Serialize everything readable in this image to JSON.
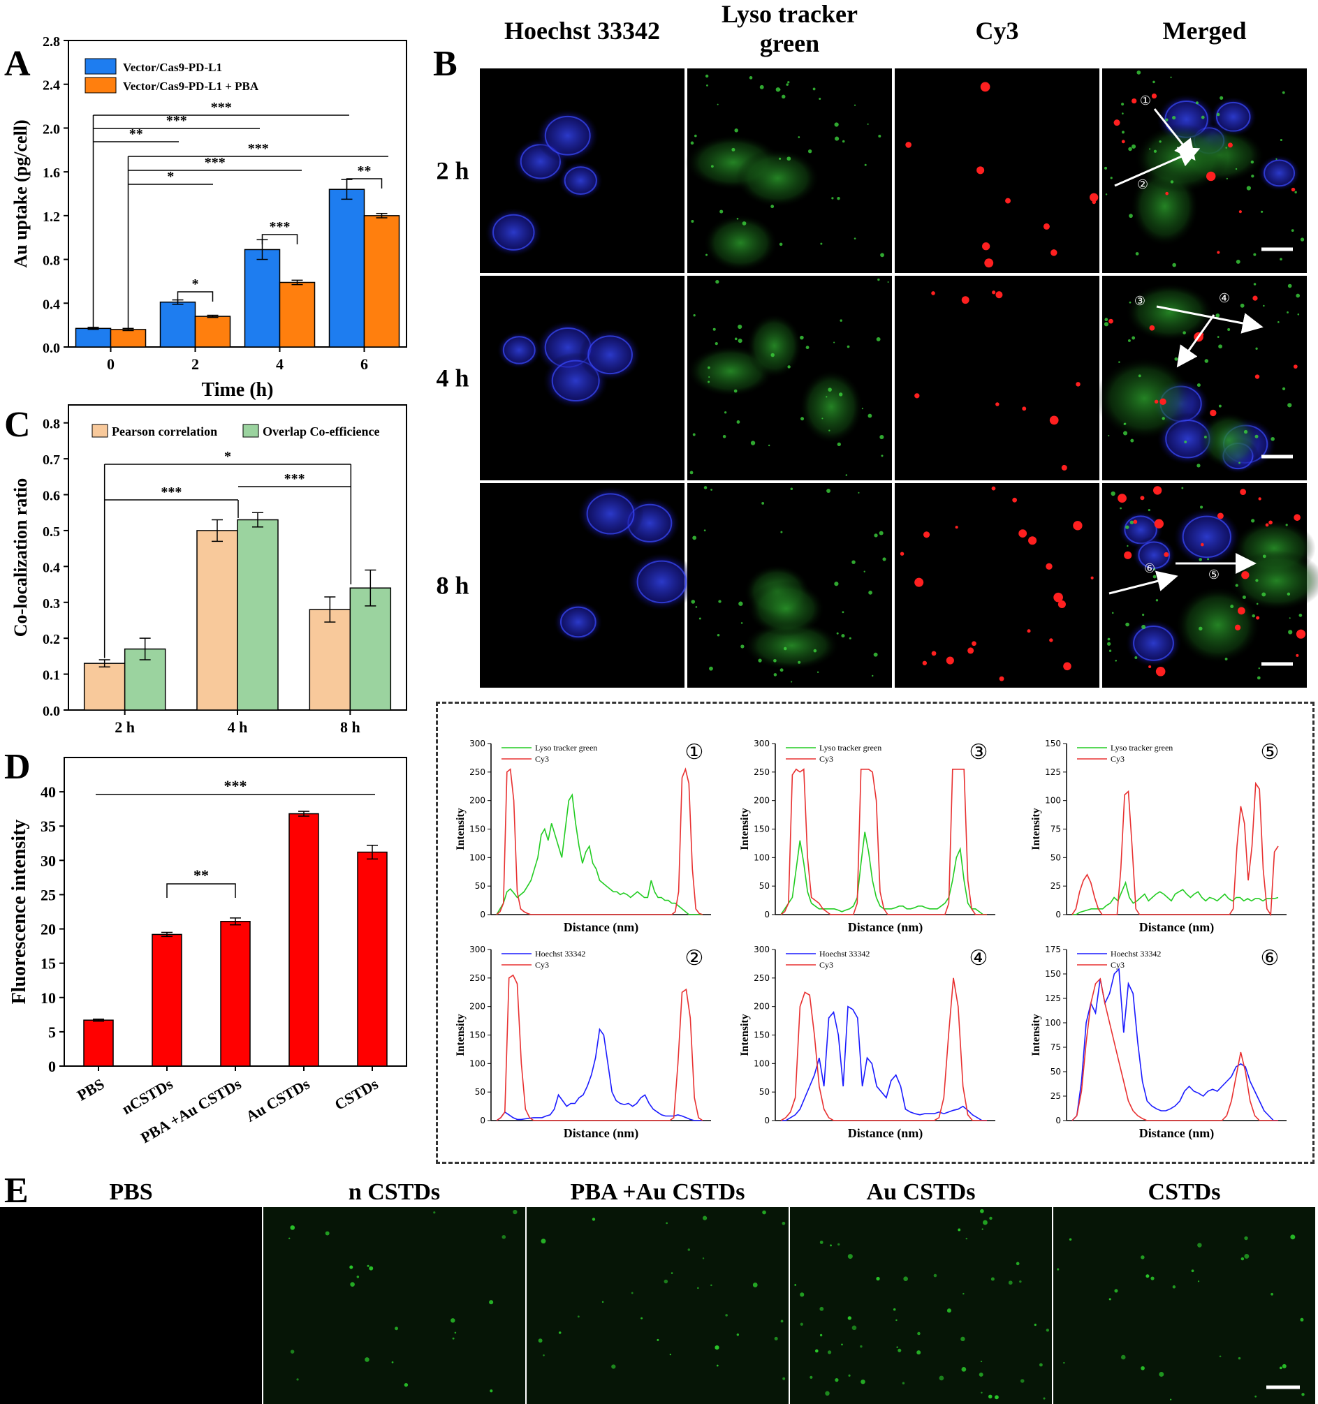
{
  "panel_letters": {
    "A": "A",
    "B": "B",
    "C": "C",
    "D": "D",
    "E": "E"
  },
  "colors": {
    "blue": "#1e7df0",
    "orange": "#ff7f0e",
    "peach": "#f8c99b",
    "mint": "#9bd39f",
    "red": "#ff0000",
    "lyso": "#22cc22",
    "hoechst": "#1a1aff",
    "cy3": "#e83030"
  },
  "panel_B": {
    "columns": [
      "Hoechst 33342",
      "Lyso tracker green",
      "Cy3",
      "Merged"
    ],
    "column_lines": [
      [
        "Hoechst 33342"
      ],
      [
        "Lyso tracker",
        "green"
      ],
      [
        "Cy3"
      ],
      [
        "Merged"
      ]
    ],
    "rows": [
      "2 h",
      "4 h",
      "8 h"
    ],
    "roi_markers": [
      "①",
      "②",
      "③",
      "④",
      "⑤",
      "⑥"
    ]
  },
  "panel_E": {
    "labels": [
      "PBS",
      "n CSTDs",
      "PBA +Au CSTDs",
      "Au CSTDs",
      "CSTDs"
    ]
  },
  "chart_data": [
    {
      "id": "A",
      "type": "bar",
      "xlabel": "Time (h)",
      "ylabel": "Au uptake (pg/cell)",
      "categories": [
        "0",
        "2",
        "4",
        "6"
      ],
      "ylim": [
        0,
        2.8
      ],
      "yticks": [
        "0.0",
        "0.4",
        "0.8",
        "1.2",
        "1.6",
        "2.0",
        "2.4",
        "2.8"
      ],
      "legend_position": "top-left",
      "series": [
        {
          "name": "Vector/Cas9-PD-L1",
          "values": [
            0.17,
            0.41,
            0.89,
            1.44
          ],
          "errors": [
            0.01,
            0.02,
            0.09,
            0.09
          ]
        },
        {
          "name": "Vector/Cas9-PD-L1 + PBA",
          "values": [
            0.16,
            0.28,
            0.59,
            1.2
          ],
          "errors": [
            0.01,
            0.01,
            0.02,
            0.02
          ]
        }
      ],
      "significance": [
        "***",
        "***",
        "**",
        "***",
        "***",
        "*",
        "*",
        "***",
        "**"
      ]
    },
    {
      "id": "C",
      "type": "bar",
      "xlabel": "",
      "ylabel": "Co-localization ratio",
      "categories": [
        "2 h",
        "4 h",
        "8 h"
      ],
      "ylim": [
        0,
        0.85
      ],
      "yticks": [
        "0.0",
        "0.1",
        "0.2",
        "0.3",
        "0.4",
        "0.5",
        "0.6",
        "0.7",
        "0.8"
      ],
      "legend_position": "top",
      "series": [
        {
          "name": "Pearson correlation",
          "values": [
            0.13,
            0.5,
            0.28
          ],
          "errors": [
            0.01,
            0.03,
            0.035
          ]
        },
        {
          "name": "Overlap Co-efficience",
          "values": [
            0.17,
            0.53,
            0.34
          ],
          "errors": [
            0.03,
            0.02,
            0.05
          ]
        }
      ],
      "significance": [
        "*",
        "***",
        "***"
      ]
    },
    {
      "id": "D",
      "type": "bar",
      "xlabel": "",
      "ylabel": "Fluorescence intensity",
      "categories": [
        "PBS",
        "nCSTDs",
        "PBA +Au CSTDs",
        "Au CSTDs",
        "CSTDs"
      ],
      "ylim": [
        0,
        45
      ],
      "yticks": [
        "0",
        "5",
        "10",
        "15",
        "20",
        "25",
        "30",
        "35",
        "40"
      ],
      "series": [
        {
          "values": [
            6.7,
            19.2,
            21.1,
            36.8,
            31.2
          ],
          "errors": [
            0.15,
            0.3,
            0.5,
            0.35,
            1.0
          ]
        }
      ],
      "significance": [
        "***",
        "**"
      ]
    },
    {
      "id": "profiles",
      "type": "line",
      "xlabel": "Distance (nm)",
      "ylabel": "Intensity",
      "panels": [
        {
          "marker": "①",
          "ylim": [
            0,
            300
          ],
          "yticks": [
            "0",
            "50",
            "100",
            "150",
            "200",
            "250",
            "300"
          ],
          "series": [
            {
              "name": "Lyso tracker green",
              "color": "green",
              "values": [
                0,
                10,
                20,
                40,
                45,
                38,
                30,
                35,
                40,
                50,
                60,
                80,
                100,
                140,
                150,
                130,
                160,
                140,
                120,
                100,
                150,
                200,
                210,
                160,
                120,
                90,
                110,
                120,
                90,
                80,
                60,
                55,
                50,
                45,
                40,
                40,
                35,
                38,
                35,
                30,
                35,
                40,
                35,
                30,
                30,
                60,
                40,
                30,
                30,
                25,
                25,
                20,
                20,
                15,
                10,
                5,
                0,
                0,
                0,
                0,
                0
              ]
            },
            {
              "name": "Cy3",
              "color": "red",
              "values": [
                0,
                5,
                20,
                250,
                255,
                200,
                40,
                10,
                5,
                2,
                0,
                0,
                0,
                0,
                0,
                0,
                0,
                0,
                0,
                0,
                0,
                0,
                0,
                0,
                0,
                0,
                0,
                0,
                0,
                0,
                0,
                0,
                0,
                0,
                0,
                0,
                0,
                0,
                0,
                0,
                0,
                0,
                0,
                0,
                0,
                0,
                0,
                0,
                0,
                0,
                0,
                0,
                5,
                40,
                240,
                255,
                230,
                80,
                10,
                2,
                0
              ]
            }
          ]
        },
        {
          "marker": "③",
          "ylim": [
            0,
            300
          ],
          "yticks": [
            "0",
            "50",
            "100",
            "150",
            "200",
            "250",
            "300"
          ],
          "series": [
            {
              "name": "Lyso tracker green",
              "color": "green",
              "values": [
                0,
                10,
                20,
                30,
                80,
                130,
                90,
                40,
                20,
                15,
                10,
                10,
                10,
                10,
                10,
                8,
                5,
                8,
                10,
                15,
                30,
                90,
                145,
                110,
                60,
                30,
                15,
                10,
                10,
                10,
                12,
                15,
                15,
                10,
                10,
                12,
                15,
                15,
                12,
                10,
                10,
                10,
                15,
                20,
                30,
                60,
                100,
                115,
                60,
                20,
                10,
                10,
                5,
                0,
                0
              ]
            },
            {
              "name": "Cy3",
              "color": "red",
              "values": [
                0,
                5,
                20,
                245,
                255,
                250,
                255,
                100,
                30,
                25,
                20,
                10,
                5,
                0,
                0,
                0,
                0,
                0,
                0,
                0,
                20,
                255,
                255,
                255,
                250,
                200,
                40,
                10,
                0,
                0,
                0,
                0,
                0,
                0,
                0,
                0,
                0,
                0,
                0,
                0,
                0,
                0,
                0,
                0,
                20,
                255,
                255,
                255,
                255,
                60,
                10,
                0,
                0,
                0,
                0
              ]
            }
          ]
        },
        {
          "marker": "⑤",
          "ylim": [
            0,
            150
          ],
          "yticks": [
            "0",
            "25",
            "50",
            "75",
            "100",
            "125",
            "150"
          ],
          "series": [
            {
              "name": "Lyso tracker green",
              "color": "green",
              "values": [
                0,
                0,
                2,
                3,
                4,
                5,
                5,
                5,
                5,
                8,
                10,
                15,
                12,
                20,
                28,
                15,
                10,
                12,
                15,
                18,
                12,
                15,
                18,
                20,
                18,
                15,
                12,
                18,
                20,
                22,
                18,
                15,
                18,
                20,
                15,
                12,
                15,
                14,
                12,
                15,
                18,
                14,
                12,
                15,
                15,
                12,
                14,
                12,
                14,
                14,
                12,
                14,
                14,
                14,
                15
              ]
            },
            {
              "name": "Cy3",
              "color": "red",
              "values": [
                0,
                5,
                20,
                30,
                35,
                28,
                15,
                5,
                0,
                0,
                0,
                0,
                0,
                40,
                105,
                108,
                60,
                5,
                0,
                0,
                0,
                0,
                0,
                0,
                0,
                0,
                0,
                0,
                0,
                0,
                0,
                0,
                0,
                0,
                0,
                0,
                0,
                0,
                0,
                0,
                0,
                0,
                0,
                5,
                60,
                95,
                80,
                30,
                60,
                115,
                110,
                40,
                5,
                0,
                55,
                60
              ]
            }
          ]
        },
        {
          "marker": "②",
          "ylim": [
            0,
            300
          ],
          "yticks": [
            "0",
            "50",
            "100",
            "150",
            "200",
            "250",
            "300"
          ],
          "series": [
            {
              "name": "Hoechst 33342",
              "color": "blue",
              "values": [
                0,
                5,
                15,
                10,
                5,
                2,
                2,
                3,
                4,
                5,
                5,
                5,
                8,
                10,
                20,
                45,
                35,
                25,
                30,
                30,
                40,
                45,
                60,
                80,
                110,
                160,
                150,
                100,
                50,
                35,
                30,
                28,
                30,
                25,
                30,
                40,
                45,
                30,
                20,
                15,
                10,
                8,
                8,
                8,
                10,
                8,
                5,
                2,
                0,
                0,
                0
              ]
            },
            {
              "name": "Cy3",
              "color": "red",
              "values": [
                0,
                5,
                15,
                250,
                255,
                240,
                100,
                20,
                5,
                0,
                0,
                0,
                0,
                0,
                0,
                0,
                0,
                0,
                0,
                0,
                0,
                0,
                0,
                0,
                0,
                0,
                0,
                0,
                0,
                0,
                0,
                0,
                0,
                0,
                0,
                0,
                0,
                0,
                0,
                0,
                0,
                0,
                0,
                5,
                100,
                225,
                230,
                180,
                40,
                5,
                0
              ]
            }
          ]
        },
        {
          "marker": "④",
          "ylim": [
            0,
            300
          ],
          "yticks": [
            "0",
            "50",
            "100",
            "150",
            "200",
            "250",
            "300"
          ],
          "series": [
            {
              "name": "Hoechst 33342",
              "color": "blue",
              "values": [
                0,
                0,
                5,
                10,
                20,
                40,
                60,
                80,
                110,
                60,
                180,
                190,
                150,
                60,
                200,
                195,
                180,
                60,
                110,
                100,
                60,
                50,
                40,
                70,
                80,
                60,
                20,
                15,
                12,
                10,
                12,
                12,
                12,
                15,
                12,
                15,
                18,
                20,
                25,
                18,
                10,
                5,
                0,
                0
              ]
            },
            {
              "name": "Cy3",
              "color": "red",
              "values": [
                0,
                5,
                15,
                40,
                200,
                225,
                220,
                150,
                60,
                20,
                5,
                0,
                0,
                0,
                0,
                0,
                0,
                0,
                0,
                0,
                0,
                0,
                0,
                0,
                0,
                0,
                0,
                0,
                0,
                0,
                0,
                0,
                0,
                5,
                40,
                150,
                250,
                200,
                60,
                10,
                0,
                0,
                0,
                0
              ]
            }
          ]
        },
        {
          "marker": "⑥",
          "ylim": [
            0,
            175
          ],
          "yticks": [
            "0",
            "25",
            "50",
            "75",
            "100",
            "125",
            "150",
            "175"
          ],
          "series": [
            {
              "name": "Hoechst 33342",
              "color": "blue",
              "values": [
                0,
                5,
                40,
                100,
                120,
                110,
                145,
                120,
                130,
                150,
                155,
                90,
                140,
                130,
                80,
                40,
                20,
                15,
                12,
                10,
                10,
                12,
                15,
                20,
                30,
                35,
                30,
                28,
                25,
                30,
                32,
                30,
                35,
                40,
                45,
                55,
                58,
                55,
                40,
                30,
                20,
                10,
                5,
                0,
                0
              ]
            },
            {
              "name": "Cy3",
              "color": "red",
              "values": [
                0,
                5,
                30,
                80,
                120,
                140,
                145,
                120,
                100,
                80,
                60,
                40,
                20,
                10,
                5,
                2,
                0,
                0,
                0,
                0,
                0,
                0,
                0,
                0,
                0,
                0,
                0,
                0,
                0,
                0,
                0,
                0,
                0,
                5,
                20,
                45,
                70,
                50,
                20,
                5,
                0,
                0,
                0,
                0,
                0
              ]
            }
          ]
        }
      ]
    }
  ]
}
